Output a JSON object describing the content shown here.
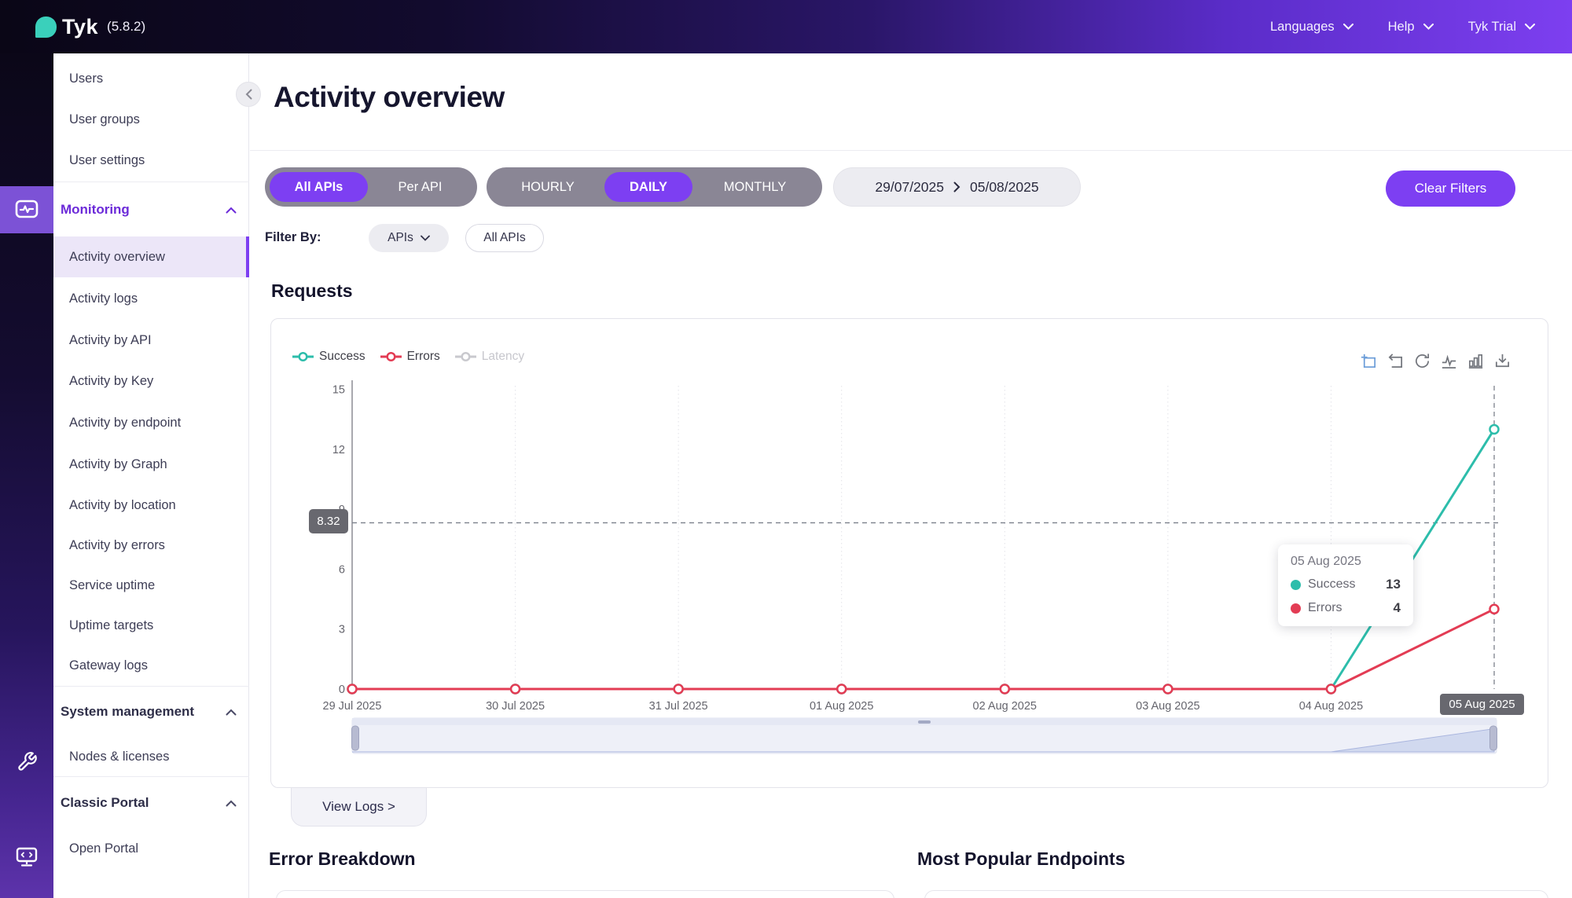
{
  "header": {
    "logo_text": "Tyk",
    "version": "(5.8.2)",
    "menus": [
      {
        "label": "Languages"
      },
      {
        "label": "Help"
      },
      {
        "label": "Tyk Trial"
      }
    ]
  },
  "sidebar": {
    "items": [
      {
        "label": "Users"
      },
      {
        "label": "User groups"
      },
      {
        "label": "User settings"
      },
      {
        "label": "Monitoring",
        "type": "section",
        "expanded": true,
        "active_section": true
      },
      {
        "label": "Activity overview",
        "active": true
      },
      {
        "label": "Activity logs"
      },
      {
        "label": "Activity by API"
      },
      {
        "label": "Activity by Key"
      },
      {
        "label": "Activity by endpoint"
      },
      {
        "label": "Activity by Graph"
      },
      {
        "label": "Activity by location"
      },
      {
        "label": "Activity by errors"
      },
      {
        "label": "Service uptime"
      },
      {
        "label": "Uptime targets"
      },
      {
        "label": "Gateway logs"
      },
      {
        "label": "System management",
        "type": "section",
        "expanded": true
      },
      {
        "label": "Nodes & licenses"
      },
      {
        "label": "Classic Portal",
        "type": "section",
        "expanded": true
      },
      {
        "label": "Open Portal"
      }
    ]
  },
  "page": {
    "title": "Activity overview"
  },
  "filters": {
    "mode": {
      "options": [
        "All APIs",
        "Per API"
      ],
      "selected": "All APIs"
    },
    "granularity": {
      "options": [
        "HOURLY",
        "DAILY",
        "MONTHLY"
      ],
      "selected": "DAILY"
    },
    "date_from": "29/07/2025",
    "date_to": "05/08/2025",
    "clear_label": "Clear Filters",
    "filter_by_label": "Filter By:",
    "api_dropdown_label": "APIs",
    "api_chip_label": "All APIs"
  },
  "requests_section": {
    "title": "Requests",
    "view_logs_label": "View Logs >"
  },
  "chart_data": {
    "type": "line",
    "title": "Requests",
    "x": [
      "29 Jul 2025",
      "30 Jul 2025",
      "31 Jul 2025",
      "01 Aug 2025",
      "02 Aug 2025",
      "03 Aug 2025",
      "04 Aug 2025",
      "05 Aug 2025"
    ],
    "series": [
      {
        "name": "Success",
        "color": "#2dbdab",
        "values": [
          0,
          0,
          0,
          0,
          0,
          0,
          0,
          13
        ],
        "disabled": false
      },
      {
        "name": "Errors",
        "color": "#e33c54",
        "values": [
          0,
          0,
          0,
          0,
          0,
          0,
          0,
          4
        ],
        "disabled": false
      },
      {
        "name": "Latency",
        "color": "#c9c9ce",
        "values": [],
        "disabled": true
      }
    ],
    "ylim": [
      0,
      15
    ],
    "yticks": [
      0,
      3,
      6,
      9,
      12,
      15
    ],
    "grid": "vertical-dotted",
    "legend_position": "top-left",
    "crosshair": {
      "x_index": 7,
      "x_label": "05 Aug 2025",
      "y_value": 8.32,
      "y_label": "8.32"
    },
    "tooltip": {
      "date": "05 Aug 2025",
      "rows": [
        {
          "label": "Success",
          "value": "13",
          "color": "#2dbdab"
        },
        {
          "label": "Errors",
          "value": "4",
          "color": "#e33c54"
        }
      ]
    },
    "datazoom": {
      "range": "full",
      "shadow_series": "Success"
    }
  },
  "toolbox_icons": [
    "zoom-select",
    "zoom-back",
    "refresh",
    "line-chart",
    "bar-chart",
    "download"
  ],
  "bottom": {
    "error_breakdown_title": "Error Breakdown",
    "popular_endpoints_title": "Most Popular Endpoints"
  },
  "colors": {
    "accent": "#7d3ff2",
    "success": "#2dbdab",
    "errors": "#e33c54",
    "latency_disabled": "#c9c9ce",
    "badge_bg": "#68686f",
    "logo_teal": "#3ad0bb"
  }
}
